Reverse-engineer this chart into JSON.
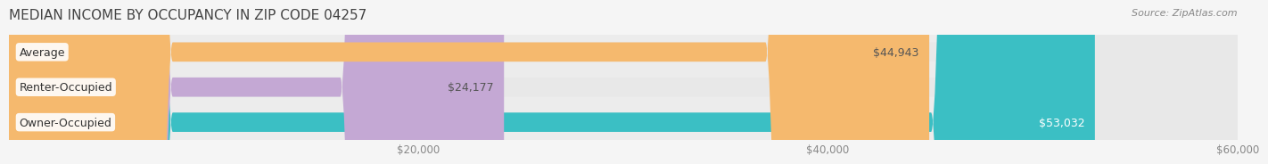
{
  "title": "MEDIAN INCOME BY OCCUPANCY IN ZIP CODE 04257",
  "source": "Source: ZipAtlas.com",
  "categories": [
    "Owner-Occupied",
    "Renter-Occupied",
    "Average"
  ],
  "values": [
    53032,
    24177,
    44943
  ],
  "bar_colors": [
    "#3bbfc4",
    "#c4a8d4",
    "#f5b96e"
  ],
  "value_labels": [
    "$53,032",
    "$24,177",
    "$44,943"
  ],
  "value_label_colors": [
    "#ffffff",
    "#555555",
    "#555555"
  ],
  "xlim": [
    0,
    60000
  ],
  "xticks": [
    20000,
    40000,
    60000
  ],
  "xticklabels": [
    "$20,000",
    "$40,000",
    "$60,000"
  ],
  "background_color": "#f5f5f5",
  "bar_background_color": "#e8e8e8",
  "title_fontsize": 11,
  "source_fontsize": 8,
  "label_fontsize": 9,
  "tick_fontsize": 8.5,
  "bar_height": 0.55,
  "label_pill_bg": "#ffffff"
}
